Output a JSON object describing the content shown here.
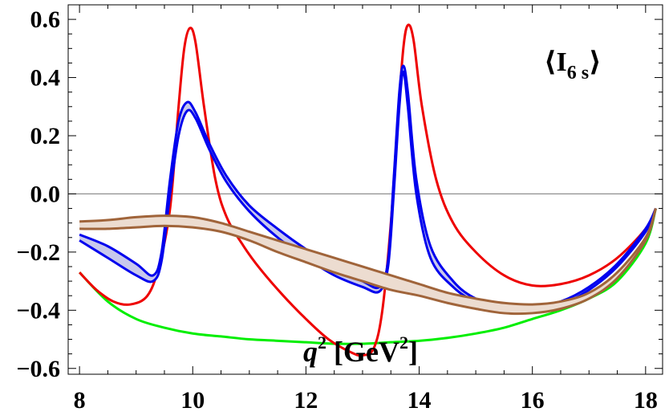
{
  "chart_data": {
    "type": "line",
    "title": "",
    "annotation": {
      "text": "⟨I",
      "sub": "6 s",
      "close": "⟩"
    },
    "xlabel": {
      "q": "q",
      "sup": "2",
      "bracket_open": " [GeV",
      "bracket_sup": "2",
      "bracket_close": "]"
    },
    "ylabel": "",
    "xlim": [
      7.8,
      18.3
    ],
    "ylim": [
      -0.62,
      0.65
    ],
    "x_ticks": [
      8,
      10,
      12,
      14,
      16,
      18
    ],
    "x_tick_labels": [
      "8",
      "10",
      "12",
      "14",
      "16",
      "18"
    ],
    "y_ticks": [
      -0.6,
      -0.4,
      -0.2,
      0.0,
      0.2,
      0.4,
      0.6
    ],
    "y_tick_labels": [
      "−0.6",
      "−0.4",
      "−0.2",
      "0.0",
      "0.2",
      "0.4",
      "0.6"
    ],
    "grid": false,
    "zero_line": true,
    "series": [
      {
        "color": "#00ee00",
        "kind": "line",
        "points": [
          [
            8.0,
            -0.27
          ],
          [
            8.5,
            -0.37
          ],
          [
            9.0,
            -0.43
          ],
          [
            9.5,
            -0.46
          ],
          [
            10.0,
            -0.48
          ],
          [
            10.5,
            -0.49
          ],
          [
            11.0,
            -0.5
          ],
          [
            11.5,
            -0.505
          ],
          [
            12.0,
            -0.51
          ],
          [
            12.5,
            -0.515
          ],
          [
            13.0,
            -0.515
          ],
          [
            13.5,
            -0.51
          ],
          [
            14.0,
            -0.505
          ],
          [
            14.5,
            -0.495
          ],
          [
            15.0,
            -0.48
          ],
          [
            15.5,
            -0.46
          ],
          [
            16.0,
            -0.43
          ],
          [
            16.5,
            -0.4
          ],
          [
            17.0,
            -0.36
          ],
          [
            17.5,
            -0.3
          ],
          [
            18.0,
            -0.17
          ],
          [
            18.18,
            -0.05
          ]
        ]
      },
      {
        "color": "#ee0000",
        "kind": "line",
        "points": [
          [
            8.0,
            -0.27
          ],
          [
            8.3,
            -0.33
          ],
          [
            8.6,
            -0.37
          ],
          [
            8.9,
            -0.38
          ],
          [
            9.2,
            -0.35
          ],
          [
            9.4,
            -0.25
          ],
          [
            9.6,
            -0.05
          ],
          [
            9.75,
            0.3
          ],
          [
            9.85,
            0.5
          ],
          [
            9.95,
            0.57
          ],
          [
            10.05,
            0.52
          ],
          [
            10.2,
            0.3
          ],
          [
            10.4,
            0.05
          ],
          [
            10.6,
            -0.08
          ],
          [
            10.9,
            -0.18
          ],
          [
            11.2,
            -0.26
          ],
          [
            11.6,
            -0.35
          ],
          [
            12.0,
            -0.43
          ],
          [
            12.4,
            -0.5
          ],
          [
            12.8,
            -0.545
          ],
          [
            13.0,
            -0.555
          ],
          [
            13.2,
            -0.53
          ],
          [
            13.35,
            -0.4
          ],
          [
            13.5,
            -0.1
          ],
          [
            13.62,
            0.25
          ],
          [
            13.72,
            0.5
          ],
          [
            13.8,
            0.58
          ],
          [
            13.9,
            0.53
          ],
          [
            14.05,
            0.3
          ],
          [
            14.3,
            0.05
          ],
          [
            14.6,
            -0.1
          ],
          [
            15.0,
            -0.2
          ],
          [
            15.5,
            -0.28
          ],
          [
            16.0,
            -0.315
          ],
          [
            16.5,
            -0.31
          ],
          [
            17.0,
            -0.28
          ],
          [
            17.5,
            -0.22
          ],
          [
            18.0,
            -0.12
          ],
          [
            18.18,
            -0.05
          ]
        ]
      },
      {
        "color": "#0000ee",
        "kind": "band",
        "fill": "#c8c8ec",
        "upper": [
          [
            8.0,
            -0.14
          ],
          [
            8.5,
            -0.18
          ],
          [
            9.0,
            -0.24
          ],
          [
            9.3,
            -0.28
          ],
          [
            9.45,
            -0.2
          ],
          [
            9.6,
            0.05
          ],
          [
            9.75,
            0.25
          ],
          [
            9.9,
            0.315
          ],
          [
            10.05,
            0.28
          ],
          [
            10.3,
            0.17
          ],
          [
            10.6,
            0.06
          ],
          [
            11.0,
            -0.04
          ],
          [
            11.5,
            -0.12
          ],
          [
            12.0,
            -0.19
          ],
          [
            12.5,
            -0.25
          ],
          [
            13.0,
            -0.3
          ],
          [
            13.3,
            -0.32
          ],
          [
            13.45,
            -0.23
          ],
          [
            13.55,
            0.05
          ],
          [
            13.65,
            0.35
          ],
          [
            13.72,
            0.44
          ],
          [
            13.8,
            0.35
          ],
          [
            13.95,
            0.05
          ],
          [
            14.2,
            -0.18
          ],
          [
            14.6,
            -0.3
          ],
          [
            15.0,
            -0.36
          ],
          [
            15.5,
            -0.385
          ],
          [
            16.0,
            -0.39
          ],
          [
            16.5,
            -0.37
          ],
          [
            17.0,
            -0.32
          ],
          [
            17.5,
            -0.24
          ],
          [
            18.0,
            -0.12
          ],
          [
            18.18,
            -0.05
          ]
        ],
        "lower": [
          [
            8.0,
            -0.16
          ],
          [
            8.5,
            -0.22
          ],
          [
            9.0,
            -0.28
          ],
          [
            9.3,
            -0.3
          ],
          [
            9.45,
            -0.23
          ],
          [
            9.6,
            0.0
          ],
          [
            9.75,
            0.2
          ],
          [
            9.9,
            0.285
          ],
          [
            10.05,
            0.26
          ],
          [
            10.3,
            0.15
          ],
          [
            10.6,
            0.04
          ],
          [
            11.0,
            -0.06
          ],
          [
            11.5,
            -0.15
          ],
          [
            12.0,
            -0.22
          ],
          [
            12.5,
            -0.28
          ],
          [
            13.0,
            -0.32
          ],
          [
            13.3,
            -0.335
          ],
          [
            13.45,
            -0.25
          ],
          [
            13.55,
            0.0
          ],
          [
            13.65,
            0.3
          ],
          [
            13.72,
            0.42
          ],
          [
            13.8,
            0.3
          ],
          [
            13.95,
            0.0
          ],
          [
            14.2,
            -0.22
          ],
          [
            14.6,
            -0.32
          ],
          [
            15.0,
            -0.37
          ],
          [
            15.5,
            -0.39
          ],
          [
            16.0,
            -0.395
          ],
          [
            16.5,
            -0.38
          ],
          [
            17.0,
            -0.33
          ],
          [
            17.5,
            -0.25
          ],
          [
            18.0,
            -0.13
          ],
          [
            18.18,
            -0.05
          ]
        ]
      },
      {
        "color": "#a0643a",
        "kind": "band",
        "fill": "#ecdcd0",
        "upper": [
          [
            8.0,
            -0.095
          ],
          [
            8.5,
            -0.09
          ],
          [
            9.0,
            -0.08
          ],
          [
            9.5,
            -0.075
          ],
          [
            10.0,
            -0.08
          ],
          [
            10.5,
            -0.1
          ],
          [
            11.0,
            -0.13
          ],
          [
            11.5,
            -0.16
          ],
          [
            12.0,
            -0.19
          ],
          [
            12.5,
            -0.22
          ],
          [
            13.0,
            -0.25
          ],
          [
            13.5,
            -0.28
          ],
          [
            14.0,
            -0.31
          ],
          [
            14.5,
            -0.34
          ],
          [
            15.0,
            -0.36
          ],
          [
            15.5,
            -0.375
          ],
          [
            16.0,
            -0.38
          ],
          [
            16.5,
            -0.37
          ],
          [
            17.0,
            -0.34
          ],
          [
            17.5,
            -0.27
          ],
          [
            18.0,
            -0.15
          ],
          [
            18.18,
            -0.05
          ]
        ],
        "lower": [
          [
            8.0,
            -0.12
          ],
          [
            8.5,
            -0.12
          ],
          [
            9.0,
            -0.115
          ],
          [
            9.5,
            -0.11
          ],
          [
            10.0,
            -0.115
          ],
          [
            10.5,
            -0.13
          ],
          [
            11.0,
            -0.16
          ],
          [
            11.5,
            -0.2
          ],
          [
            12.0,
            -0.235
          ],
          [
            12.5,
            -0.27
          ],
          [
            13.0,
            -0.3
          ],
          [
            13.5,
            -0.33
          ],
          [
            14.0,
            -0.35
          ],
          [
            14.5,
            -0.375
          ],
          [
            15.0,
            -0.395
          ],
          [
            15.5,
            -0.41
          ],
          [
            16.0,
            -0.41
          ],
          [
            16.5,
            -0.395
          ],
          [
            17.0,
            -0.36
          ],
          [
            17.5,
            -0.29
          ],
          [
            18.0,
            -0.16
          ],
          [
            18.18,
            -0.05
          ]
        ]
      }
    ]
  }
}
